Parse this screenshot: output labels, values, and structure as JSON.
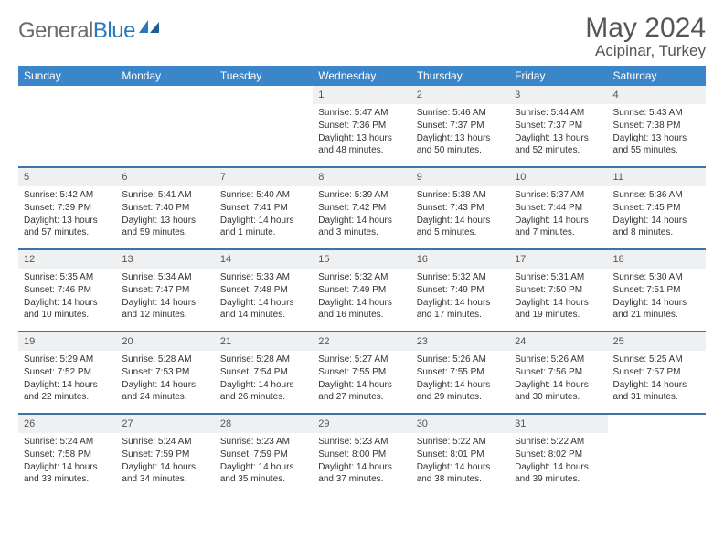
{
  "logo": {
    "word1": "General",
    "word2": "Blue"
  },
  "title": {
    "month": "May 2024",
    "location": "Acipinar, Turkey"
  },
  "colors": {
    "header_bg": "#3a86c8",
    "row_border": "#3a74a8",
    "daynum_bg": "#eef0f2",
    "logo_gray": "#6b6b6b",
    "logo_blue": "#2a78bb"
  },
  "weekdays": [
    "Sunday",
    "Monday",
    "Tuesday",
    "Wednesday",
    "Thursday",
    "Friday",
    "Saturday"
  ],
  "weeks": [
    [
      {
        "empty": true
      },
      {
        "empty": true
      },
      {
        "empty": true
      },
      {
        "n": "1",
        "sr": "5:47 AM",
        "ss": "7:36 PM",
        "dl": "13 hours and 48 minutes."
      },
      {
        "n": "2",
        "sr": "5:46 AM",
        "ss": "7:37 PM",
        "dl": "13 hours and 50 minutes."
      },
      {
        "n": "3",
        "sr": "5:44 AM",
        "ss": "7:37 PM",
        "dl": "13 hours and 52 minutes."
      },
      {
        "n": "4",
        "sr": "5:43 AM",
        "ss": "7:38 PM",
        "dl": "13 hours and 55 minutes."
      }
    ],
    [
      {
        "n": "5",
        "sr": "5:42 AM",
        "ss": "7:39 PM",
        "dl": "13 hours and 57 minutes."
      },
      {
        "n": "6",
        "sr": "5:41 AM",
        "ss": "7:40 PM",
        "dl": "13 hours and 59 minutes."
      },
      {
        "n": "7",
        "sr": "5:40 AM",
        "ss": "7:41 PM",
        "dl": "14 hours and 1 minute."
      },
      {
        "n": "8",
        "sr": "5:39 AM",
        "ss": "7:42 PM",
        "dl": "14 hours and 3 minutes."
      },
      {
        "n": "9",
        "sr": "5:38 AM",
        "ss": "7:43 PM",
        "dl": "14 hours and 5 minutes."
      },
      {
        "n": "10",
        "sr": "5:37 AM",
        "ss": "7:44 PM",
        "dl": "14 hours and 7 minutes."
      },
      {
        "n": "11",
        "sr": "5:36 AM",
        "ss": "7:45 PM",
        "dl": "14 hours and 8 minutes."
      }
    ],
    [
      {
        "n": "12",
        "sr": "5:35 AM",
        "ss": "7:46 PM",
        "dl": "14 hours and 10 minutes."
      },
      {
        "n": "13",
        "sr": "5:34 AM",
        "ss": "7:47 PM",
        "dl": "14 hours and 12 minutes."
      },
      {
        "n": "14",
        "sr": "5:33 AM",
        "ss": "7:48 PM",
        "dl": "14 hours and 14 minutes."
      },
      {
        "n": "15",
        "sr": "5:32 AM",
        "ss": "7:49 PM",
        "dl": "14 hours and 16 minutes."
      },
      {
        "n": "16",
        "sr": "5:32 AM",
        "ss": "7:49 PM",
        "dl": "14 hours and 17 minutes."
      },
      {
        "n": "17",
        "sr": "5:31 AM",
        "ss": "7:50 PM",
        "dl": "14 hours and 19 minutes."
      },
      {
        "n": "18",
        "sr": "5:30 AM",
        "ss": "7:51 PM",
        "dl": "14 hours and 21 minutes."
      }
    ],
    [
      {
        "n": "19",
        "sr": "5:29 AM",
        "ss": "7:52 PM",
        "dl": "14 hours and 22 minutes."
      },
      {
        "n": "20",
        "sr": "5:28 AM",
        "ss": "7:53 PM",
        "dl": "14 hours and 24 minutes."
      },
      {
        "n": "21",
        "sr": "5:28 AM",
        "ss": "7:54 PM",
        "dl": "14 hours and 26 minutes."
      },
      {
        "n": "22",
        "sr": "5:27 AM",
        "ss": "7:55 PM",
        "dl": "14 hours and 27 minutes."
      },
      {
        "n": "23",
        "sr": "5:26 AM",
        "ss": "7:55 PM",
        "dl": "14 hours and 29 minutes."
      },
      {
        "n": "24",
        "sr": "5:26 AM",
        "ss": "7:56 PM",
        "dl": "14 hours and 30 minutes."
      },
      {
        "n": "25",
        "sr": "5:25 AM",
        "ss": "7:57 PM",
        "dl": "14 hours and 31 minutes."
      }
    ],
    [
      {
        "n": "26",
        "sr": "5:24 AM",
        "ss": "7:58 PM",
        "dl": "14 hours and 33 minutes."
      },
      {
        "n": "27",
        "sr": "5:24 AM",
        "ss": "7:59 PM",
        "dl": "14 hours and 34 minutes."
      },
      {
        "n": "28",
        "sr": "5:23 AM",
        "ss": "7:59 PM",
        "dl": "14 hours and 35 minutes."
      },
      {
        "n": "29",
        "sr": "5:23 AM",
        "ss": "8:00 PM",
        "dl": "14 hours and 37 minutes."
      },
      {
        "n": "30",
        "sr": "5:22 AM",
        "ss": "8:01 PM",
        "dl": "14 hours and 38 minutes."
      },
      {
        "n": "31",
        "sr": "5:22 AM",
        "ss": "8:02 PM",
        "dl": "14 hours and 39 minutes."
      },
      {
        "empty": true
      }
    ]
  ],
  "labels": {
    "sunrise": "Sunrise: ",
    "sunset": "Sunset: ",
    "daylight": "Daylight: "
  }
}
